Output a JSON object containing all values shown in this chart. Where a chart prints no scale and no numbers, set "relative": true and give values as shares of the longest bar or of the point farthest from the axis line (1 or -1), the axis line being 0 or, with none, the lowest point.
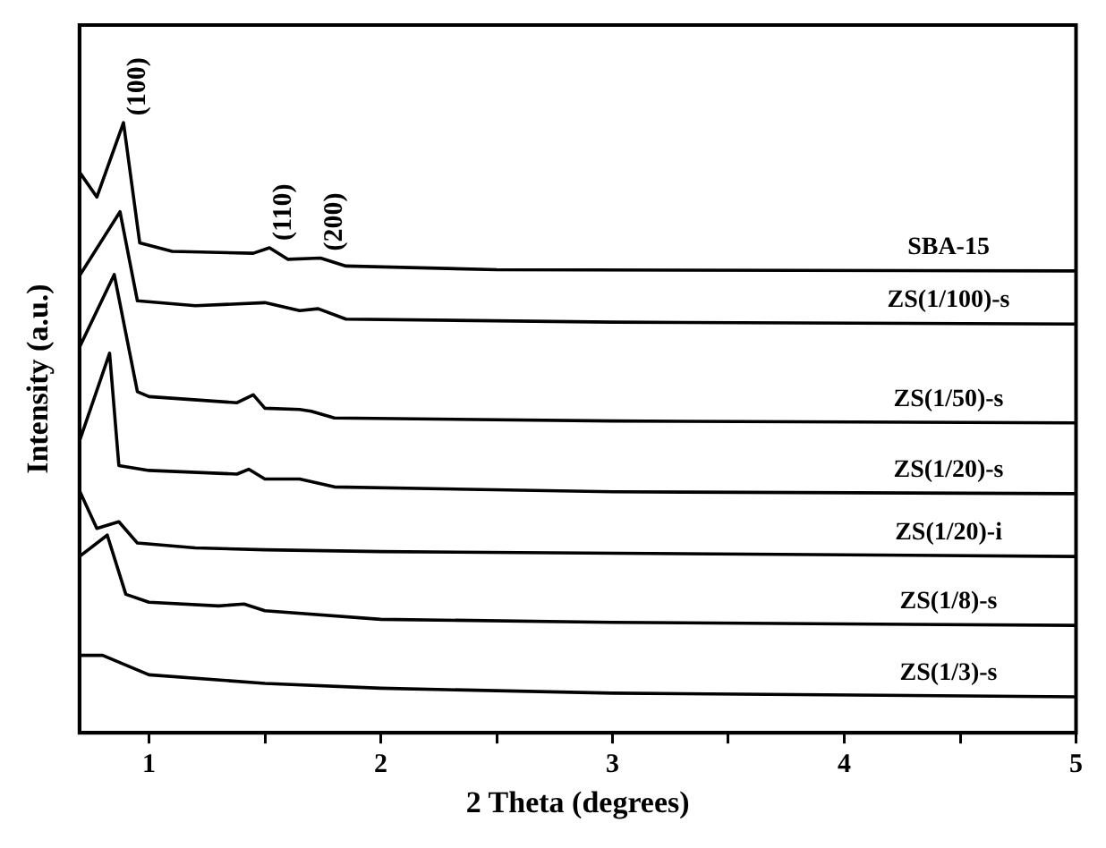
{
  "chart_data": {
    "type": "line",
    "relative": true,
    "xlabel": "2 Theta (degrees)",
    "ylabel": "Intensity (a.u.)",
    "xlim": [
      0.7,
      5
    ],
    "xticks": [
      1,
      {
        "value": 1.5,
        "label": null
      },
      2,
      {
        "value": 2.5,
        "label": null
      },
      3,
      {
        "value": 3.5,
        "label": null
      },
      4,
      {
        "value": 4.5,
        "label": null
      },
      5
    ],
    "grid": false,
    "legend": false,
    "marker": "none",
    "line_style": "solid",
    "annotations": [
      {
        "text": "(100)",
        "x": 0.89,
        "y": 1
      },
      {
        "text": "(110)",
        "x": 1.52,
        "y": 0.795
      },
      {
        "text": "(200)",
        "x": 1.74,
        "y": 0.778
      }
    ],
    "series": [
      {
        "name": "SBA-15",
        "color": "#000000",
        "x": [
          0.7,
          0.775,
          0.89,
          0.96,
          1.1,
          1.45,
          1.52,
          1.6,
          1.74,
          1.85,
          2.5,
          5
        ],
        "values": [
          0.919,
          0.878,
          1,
          0.803,
          0.789,
          0.786,
          0.795,
          0.776,
          0.778,
          0.765,
          0.759,
          0.757
        ]
      },
      {
        "name": "ZS(1/100)-s",
        "color": "#000000",
        "x": [
          0.7,
          0.875,
          0.95,
          1.2,
          1.5,
          1.65,
          1.73,
          1.85,
          3,
          5
        ],
        "values": [
          0.749,
          0.854,
          0.708,
          0.7,
          0.705,
          0.692,
          0.695,
          0.678,
          0.673,
          0.67
        ]
      },
      {
        "name": "ZS(1/50)-s",
        "color": "#000000",
        "x": [
          0.7,
          0.85,
          0.95,
          1.0,
          1.38,
          1.45,
          1.5,
          1.65,
          1.7,
          1.8,
          3,
          5
        ],
        "values": [
          0.632,
          0.751,
          0.559,
          0.551,
          0.541,
          0.554,
          0.532,
          0.53,
          0.527,
          0.516,
          0.511,
          0.508
        ]
      },
      {
        "name": "ZS(1/20)-s",
        "color": "#000000",
        "x": [
          0.7,
          0.83,
          0.87,
          1.0,
          1.38,
          1.43,
          1.5,
          1.65,
          1.8,
          3,
          5
        ],
        "values": [
          0.478,
          0.622,
          0.438,
          0.43,
          0.424,
          0.432,
          0.416,
          0.416,
          0.403,
          0.395,
          0.392
        ]
      },
      {
        "name": "ZS(1/20)-i",
        "color": "#000000",
        "x": [
          0.7,
          0.775,
          0.87,
          0.95,
          1.2,
          1.5,
          2,
          5
        ],
        "values": [
          0.397,
          0.335,
          0.346,
          0.311,
          0.303,
          0.3,
          0.297,
          0.289
        ]
      },
      {
        "name": "ZS(1/8)-s",
        "color": "#000000",
        "x": [
          0.7,
          0.82,
          0.9,
          1.0,
          1.3,
          1.41,
          1.5,
          2,
          3,
          5
        ],
        "values": [
          0.289,
          0.324,
          0.227,
          0.214,
          0.208,
          0.211,
          0.2,
          0.186,
          0.181,
          0.176
        ]
      },
      {
        "name": "ZS(1/3)-s",
        "color": "#000000",
        "x": [
          0.7,
          0.8,
          1.0,
          1.5,
          2,
          3,
          5
        ],
        "values": [
          0.127,
          0.127,
          0.095,
          0.081,
          0.073,
          0.065,
          0.059
        ]
      }
    ]
  }
}
